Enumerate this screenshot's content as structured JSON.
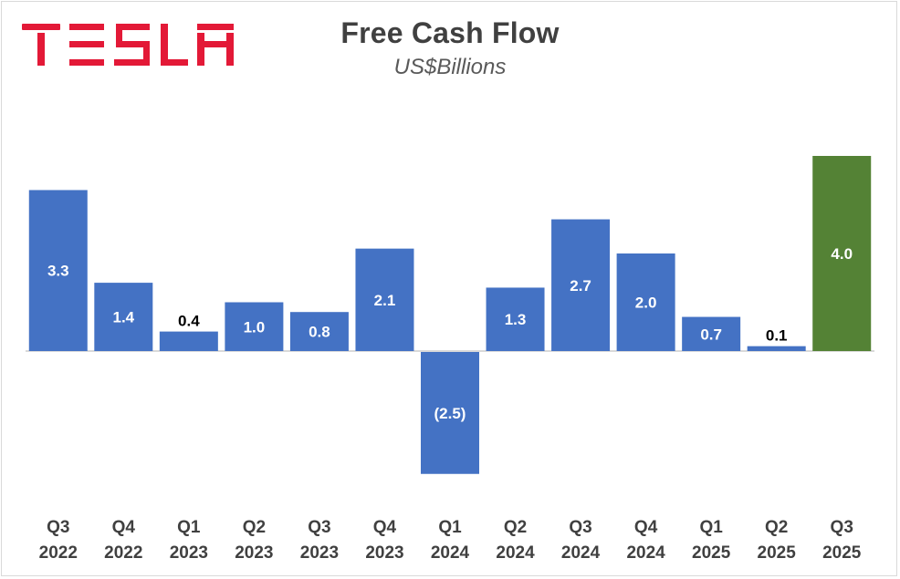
{
  "brand": "TESLA",
  "chart_data": {
    "type": "bar",
    "title": "Free Cash Flow",
    "subtitle": "US$Billions",
    "xlabel": "",
    "ylabel": "",
    "ylim": [
      -2.5,
      4.0
    ],
    "grid": false,
    "categories": [
      [
        "Q3",
        "2022"
      ],
      [
        "Q4",
        "2022"
      ],
      [
        "Q1",
        "2023"
      ],
      [
        "Q2",
        "2023"
      ],
      [
        "Q3",
        "2023"
      ],
      [
        "Q4",
        "2023"
      ],
      [
        "Q1",
        "2024"
      ],
      [
        "Q2",
        "2024"
      ],
      [
        "Q3",
        "2024"
      ],
      [
        "Q4",
        "2024"
      ],
      [
        "Q1",
        "2025"
      ],
      [
        "Q2",
        "2025"
      ],
      [
        "Q3",
        "2025"
      ]
    ],
    "values": [
      3.3,
      1.4,
      0.4,
      1.0,
      0.8,
      2.1,
      -2.5,
      1.3,
      2.7,
      2.0,
      0.7,
      0.1,
      4.0
    ],
    "labels": [
      "3.3",
      "1.4",
      "0.4",
      "1.0",
      "0.8",
      "2.1",
      "(2.5)",
      "1.3",
      "2.7",
      "2.0",
      "0.7",
      "0.1",
      "4.0"
    ],
    "colors": {
      "default": "#4472c4",
      "highlight": "#548235",
      "highlight_index": 12,
      "label_inside": "#ffffff",
      "label_outside": "#000000",
      "axis": "#d9d9d9",
      "tick_label": "#404040"
    }
  }
}
